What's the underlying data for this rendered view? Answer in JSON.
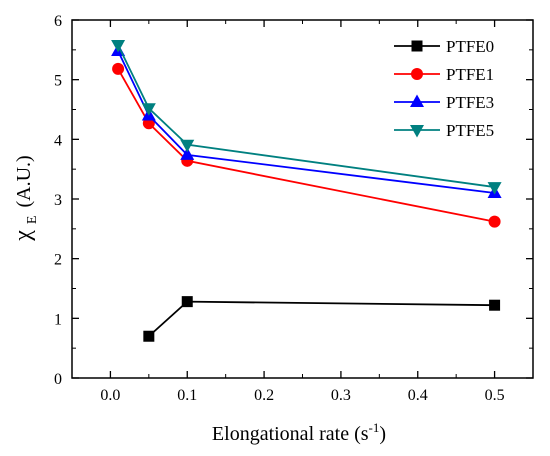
{
  "chart_data": {
    "type": "line",
    "title": "",
    "xlabel": "Elongational rate (s",
    "xlabel_sup": "-1",
    "xlabel_end": ")",
    "ylabel_symbol": "χ",
    "ylabel_sub": "E",
    "ylabel_unit": "(A.U.)",
    "xlim": [
      -0.05,
      0.55
    ],
    "ylim": [
      0,
      6
    ],
    "xticks": [
      0.0,
      0.1,
      0.2,
      0.3,
      0.4,
      0.5
    ],
    "xtick_labels": [
      "0.0",
      "0.1",
      "0.2",
      "0.3",
      "0.4",
      "0.5"
    ],
    "yticks": [
      0,
      1,
      2,
      3,
      4,
      5,
      6
    ],
    "ytick_labels": [
      "0",
      "1",
      "2",
      "3",
      "4",
      "5",
      "6"
    ],
    "grid": false,
    "legend_position": "top-right",
    "series": [
      {
        "name": "PTFE0",
        "color": "#000000",
        "marker": "square",
        "x": [
          0.05,
          0.1,
          0.5
        ],
        "y": [
          0.7,
          1.28,
          1.22
        ]
      },
      {
        "name": "PTFE1",
        "color": "#ff0000",
        "marker": "circle",
        "x": [
          0.01,
          0.05,
          0.1,
          0.5
        ],
        "y": [
          5.18,
          4.27,
          3.64,
          2.62
        ]
      },
      {
        "name": "PTFE3",
        "color": "#0000ff",
        "marker": "triangle-up",
        "x": [
          0.01,
          0.05,
          0.1,
          0.5
        ],
        "y": [
          5.48,
          4.4,
          3.74,
          3.1
        ]
      },
      {
        "name": "PTFE5",
        "color": "#008080",
        "marker": "triangle-down",
        "x": [
          0.01,
          0.05,
          0.1,
          0.5
        ],
        "y": [
          5.58,
          4.52,
          3.91,
          3.2
        ]
      }
    ]
  }
}
